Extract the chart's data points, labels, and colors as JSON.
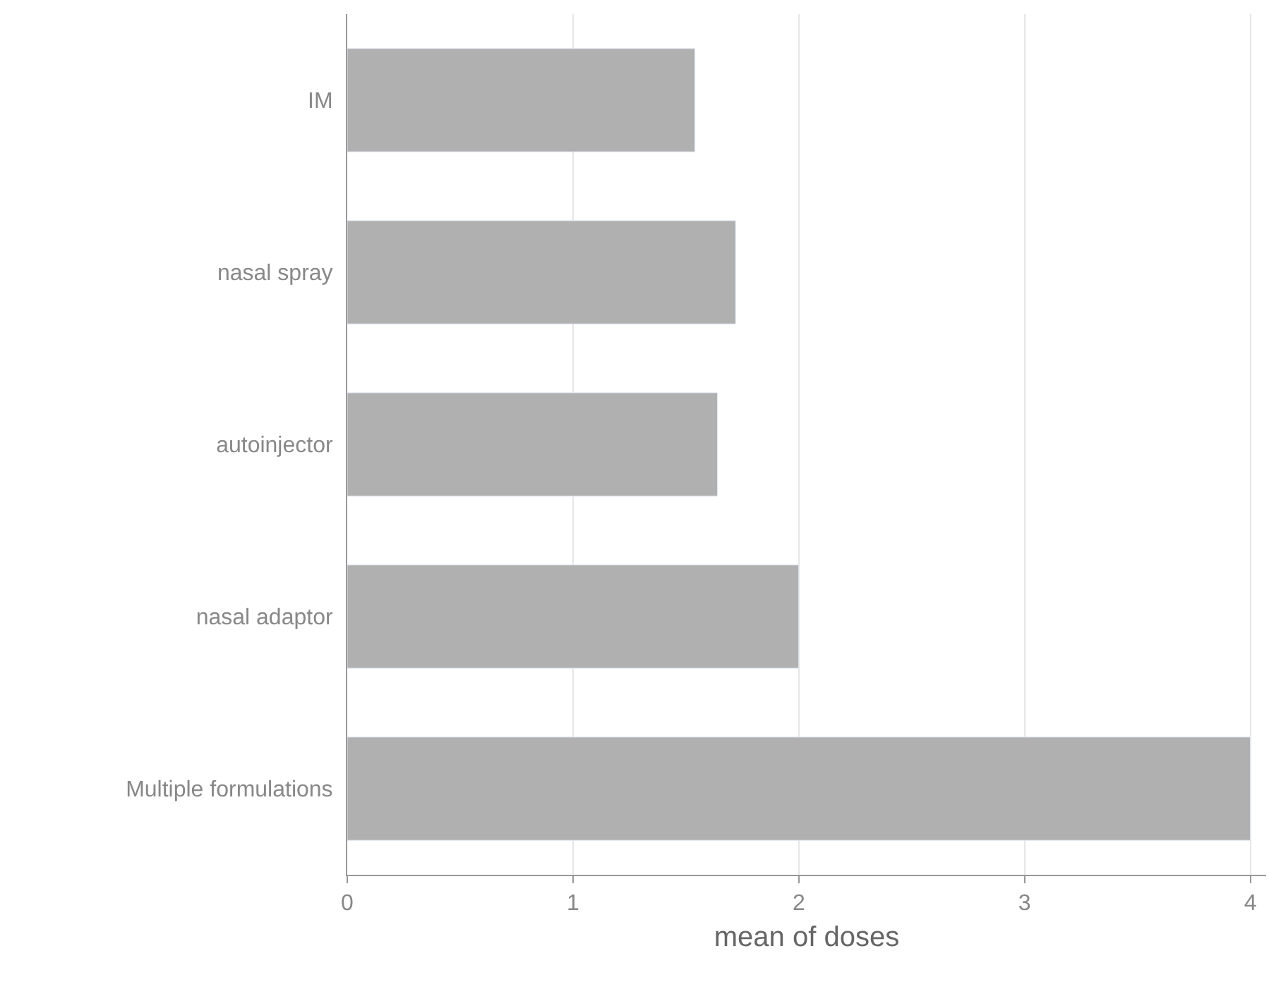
{
  "chart_data": {
    "type": "bar",
    "orientation": "horizontal",
    "xlabel": "mean of doses",
    "categories": [
      "IM",
      "nasal spray",
      "autoinjector",
      "nasal adaptor",
      "Multiple formulations"
    ],
    "values": [
      1.54,
      1.72,
      1.64,
      2.0,
      4.0
    ],
    "color": "#b0b0b0",
    "xlim": [
      0,
      4.07
    ],
    "xticks": [
      0,
      1,
      2,
      3,
      4
    ],
    "grid": "x"
  }
}
